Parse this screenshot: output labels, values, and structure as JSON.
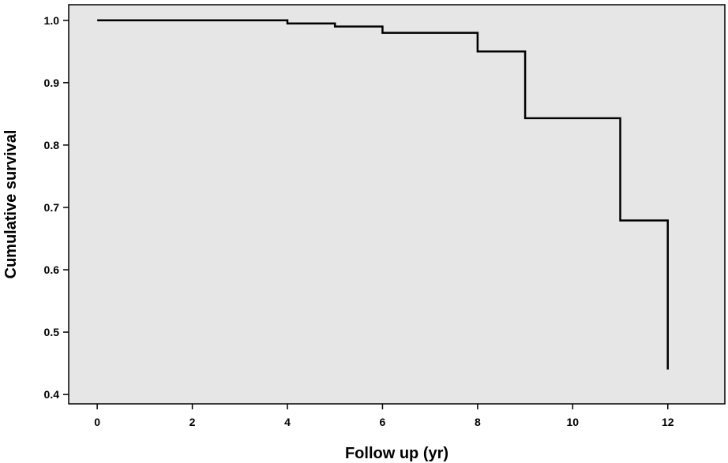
{
  "chart_data": {
    "type": "line",
    "subtype": "step",
    "xlabel": "Follow up (yr)",
    "ylabel": "Cumulative survival",
    "xlim": [
      -0.6,
      13.2
    ],
    "ylim": [
      0.385,
      1.025
    ],
    "x_ticks": [
      0,
      2,
      4,
      6,
      8,
      10,
      12
    ],
    "y_ticks": [
      0.4,
      0.5,
      0.6,
      0.7,
      0.8,
      0.9,
      1.0
    ],
    "x_tick_labels": [
      "0",
      "2",
      "4",
      "6",
      "8",
      "10",
      "12"
    ],
    "y_tick_labels": [
      "0.4",
      "0.5",
      "0.6",
      "0.7",
      "0.8",
      "0.9",
      "1.0"
    ],
    "grid": false,
    "legend": "none",
    "colors": {
      "plot_background": "#e6e6e6",
      "line": "#000000",
      "axis": "#000000"
    },
    "series": [
      {
        "step": "post",
        "x": [
          0,
          4,
          5,
          6,
          8,
          9,
          11,
          12
        ],
        "y": [
          1.0,
          0.995,
          0.99,
          0.98,
          0.95,
          0.843,
          0.679,
          0.44
        ]
      }
    ]
  }
}
